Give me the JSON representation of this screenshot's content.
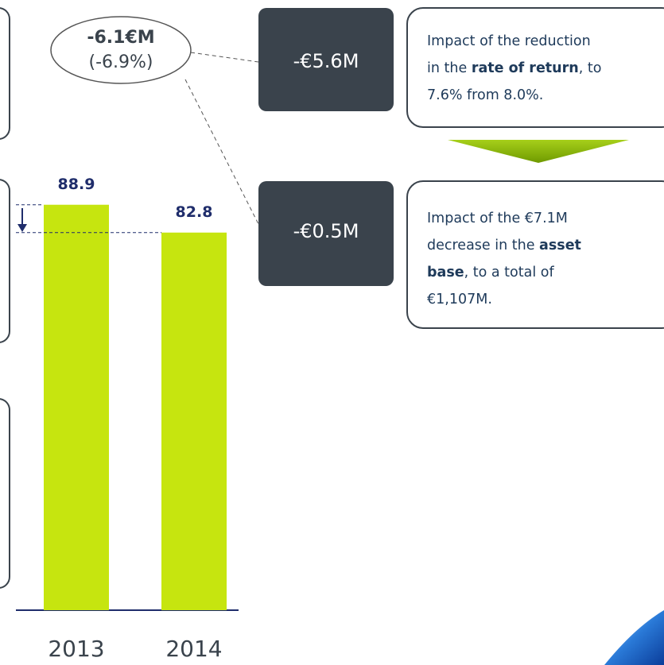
{
  "chart_data": {
    "type": "bar",
    "categories": [
      "2013",
      "2014"
    ],
    "values": [
      88.9,
      82.8
    ],
    "color": "#c6e50f",
    "annotations": {
      "total_change": {
        "amount": "-6.1€M",
        "percent": "(-6.9%)"
      },
      "components": [
        {
          "amount": "-€5.6M",
          "lines": [
            [
              {
                "text": "Impact of the reduction"
              }
            ],
            [
              {
                "text": "in the "
              },
              {
                "text": "rate of return",
                "bold": true
              },
              {
                "text": ", to"
              }
            ],
            [
              {
                "text": "7.6% from 8.0%."
              }
            ]
          ]
        },
        {
          "amount": "-€0.5M",
          "lines": [
            [
              {
                "text": "Impact of the €7.1M"
              }
            ],
            [
              {
                "text": "decrease in the "
              },
              {
                "text": "asset",
                "bold": true
              }
            ],
            [
              {
                "text": "base",
                "bold": true
              },
              {
                "text": ", to a total of"
              }
            ],
            [
              {
                "text": "€1,107M."
              }
            ]
          ]
        }
      ]
    }
  }
}
